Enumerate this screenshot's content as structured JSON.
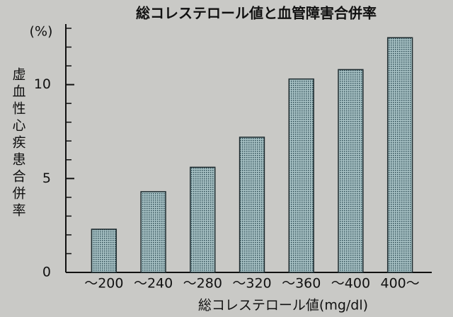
{
  "chart_data": {
    "type": "bar",
    "title": "総コレステロール値と血管障害合併率",
    "y_label": "虚血性心疾患合併率",
    "y_unit": "(%)",
    "x_label": "総コレステロール値(mg/dl)",
    "categories": [
      "～200",
      "～240",
      "～280",
      "～320",
      "～360",
      "～400",
      "400～"
    ],
    "values": [
      2.3,
      4.3,
      5.6,
      7.2,
      10.3,
      10.8,
      12.5
    ],
    "color": "#8aa9b0",
    "ylim": [
      0,
      13
    ],
    "yticks": [
      0,
      5,
      10
    ],
    "minor_yticks": [
      1,
      2,
      3,
      4,
      6,
      7,
      8,
      9,
      11,
      12,
      13
    ]
  }
}
